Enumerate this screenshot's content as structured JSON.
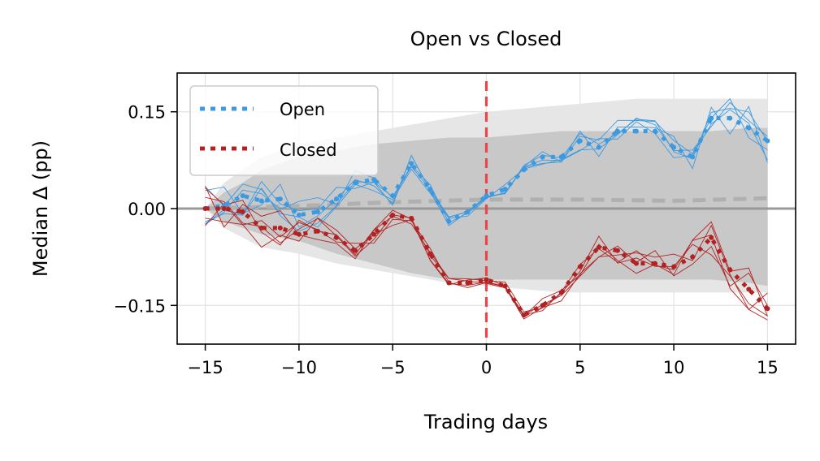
{
  "chart_data": {
    "type": "line",
    "title": "Open vs Closed",
    "xlabel": "Trading days",
    "ylabel": "Median Δ (pp)",
    "xlim": [
      -16.5,
      16.5
    ],
    "ylim": [
      -0.21,
      0.21
    ],
    "x_ticks": [
      -15,
      -10,
      -5,
      0,
      5,
      10,
      15
    ],
    "x_tick_labels": [
      "−15",
      "−10",
      "−5",
      "0",
      "5",
      "10",
      "15"
    ],
    "y_ticks": [
      0.15,
      0.0,
      -0.15
    ],
    "y_tick_labels": [
      "0.15",
      "0.00",
      "−0.15"
    ],
    "grid": true,
    "legend_position": "top-left",
    "event_line_x": 0,
    "event_line_color": "#e8474a",
    "zero_line_color": "#999999",
    "band_color": "#c8c8c8",
    "series": [
      {
        "name": "Open",
        "color": "#3b9ae1",
        "style": "dotted",
        "x": [
          -15,
          -14,
          -13,
          -12,
          -11,
          -10,
          -9,
          -8,
          -7,
          -6,
          -5,
          -4,
          -3,
          -2,
          -1,
          0,
          1,
          2,
          3,
          4,
          5,
          6,
          7,
          8,
          9,
          10,
          11,
          12,
          13,
          14,
          15
        ],
        "values": [
          0.0,
          0.005,
          0.02,
          0.012,
          0.015,
          -0.01,
          -0.005,
          0.015,
          0.04,
          0.045,
          0.02,
          0.07,
          0.03,
          -0.02,
          -0.005,
          0.02,
          0.03,
          0.06,
          0.08,
          0.08,
          0.105,
          0.095,
          0.12,
          0.12,
          0.12,
          0.095,
          0.08,
          0.14,
          0.14,
          0.125,
          0.105
        ]
      },
      {
        "name": "Closed",
        "color": "#b22222",
        "style": "dotted",
        "x": [
          -15,
          -14,
          -13,
          -12,
          -11,
          -10,
          -9,
          -8,
          -7,
          -6,
          -5,
          -4,
          -3,
          -2,
          -1,
          0,
          1,
          2,
          3,
          4,
          5,
          6,
          7,
          8,
          9,
          10,
          11,
          12,
          13,
          14,
          15
        ],
        "values": [
          0.0,
          0.0,
          -0.005,
          -0.03,
          -0.03,
          -0.04,
          -0.035,
          -0.045,
          -0.065,
          -0.04,
          -0.01,
          -0.015,
          -0.07,
          -0.115,
          -0.115,
          -0.11,
          -0.12,
          -0.165,
          -0.15,
          -0.13,
          -0.09,
          -0.06,
          -0.065,
          -0.085,
          -0.085,
          -0.09,
          -0.075,
          -0.045,
          -0.095,
          -0.125,
          -0.155
        ]
      }
    ],
    "baseline": {
      "x": [
        -15,
        -10,
        -5,
        0,
        5,
        10,
        15
      ],
      "values": [
        0.0,
        0.004,
        0.01,
        0.014,
        0.014,
        0.012,
        0.016
      ],
      "color": "#b0b0b0"
    },
    "band": {
      "x": [
        -15,
        -14,
        -13,
        -12,
        -10,
        -8,
        -6,
        -4,
        -2,
        0,
        2,
        4,
        6,
        8,
        10,
        12,
        14,
        15
      ],
      "upper": [
        0.0,
        0.025,
        0.04,
        0.06,
        0.08,
        0.09,
        0.1,
        0.105,
        0.11,
        0.11,
        0.115,
        0.12,
        0.12,
        0.12,
        0.12,
        0.12,
        0.125,
        0.125
      ],
      "lower": [
        0.0,
        -0.02,
        -0.03,
        -0.04,
        -0.05,
        -0.07,
        -0.085,
        -0.1,
        -0.11,
        -0.11,
        -0.11,
        -0.11,
        -0.11,
        -0.11,
        -0.11,
        -0.11,
        -0.115,
        -0.12
      ],
      "outer_upper": [
        0.0,
        0.04,
        0.06,
        0.08,
        0.1,
        0.11,
        0.12,
        0.13,
        0.14,
        0.15,
        0.155,
        0.16,
        0.165,
        0.17,
        0.17,
        0.17,
        0.17,
        0.17
      ],
      "outer_lower": [
        0.0,
        -0.03,
        -0.045,
        -0.06,
        -0.07,
        -0.085,
        -0.095,
        -0.105,
        -0.115,
        -0.12,
        -0.125,
        -0.13,
        -0.13,
        -0.13,
        -0.13,
        -0.13,
        -0.13,
        -0.13
      ]
    }
  }
}
